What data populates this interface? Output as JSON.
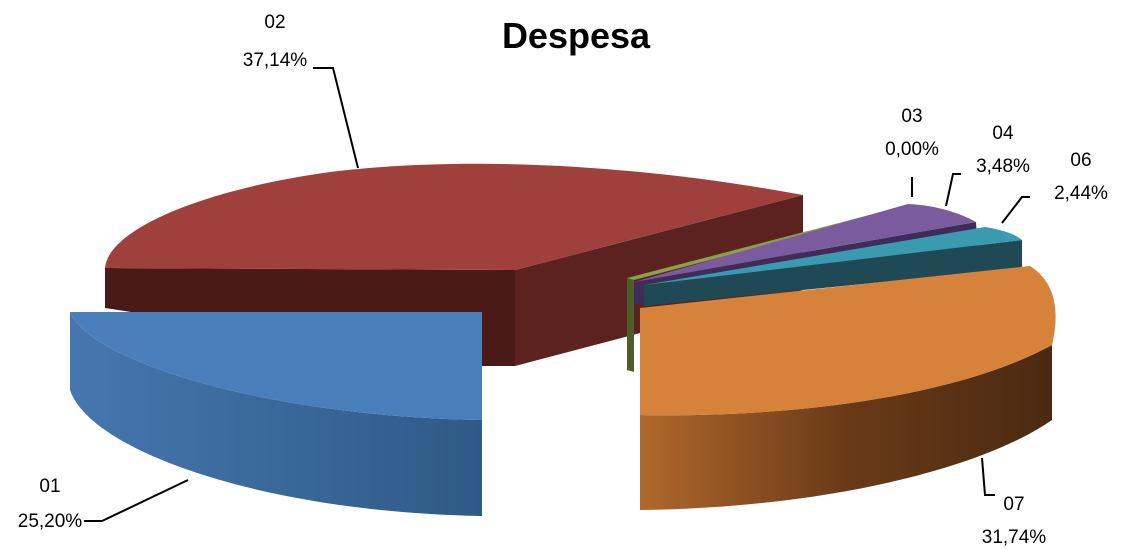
{
  "chart_data": {
    "type": "pie",
    "title": "Despesa",
    "style": "3d-exploded",
    "slices": [
      {
        "name": "01",
        "value_label": "25,20%",
        "value": 25.2,
        "color": "#4a7ebb",
        "side_color": "#34608f"
      },
      {
        "name": "02",
        "value_label": "37,14%",
        "value": 37.14,
        "color": "#a0403d",
        "side_color": "#5e2220"
      },
      {
        "name": "03",
        "value_label": "0,00%",
        "value": 0.0,
        "color": "#8aa04c",
        "side_color": "#4f5e28"
      },
      {
        "name": "04",
        "value_label": "3,48%",
        "value": 3.48,
        "color": "#7a5b9e",
        "side_color": "#3f2c58"
      },
      {
        "name": "06",
        "value_label": "2,44%",
        "value": 2.44,
        "color": "#3a9ab0",
        "side_color": "#1f4a55"
      },
      {
        "name": "07",
        "value_label": "31,74%",
        "value": 31.74,
        "color": "#d6823a",
        "side_color": "#6a3c1c"
      }
    ]
  }
}
